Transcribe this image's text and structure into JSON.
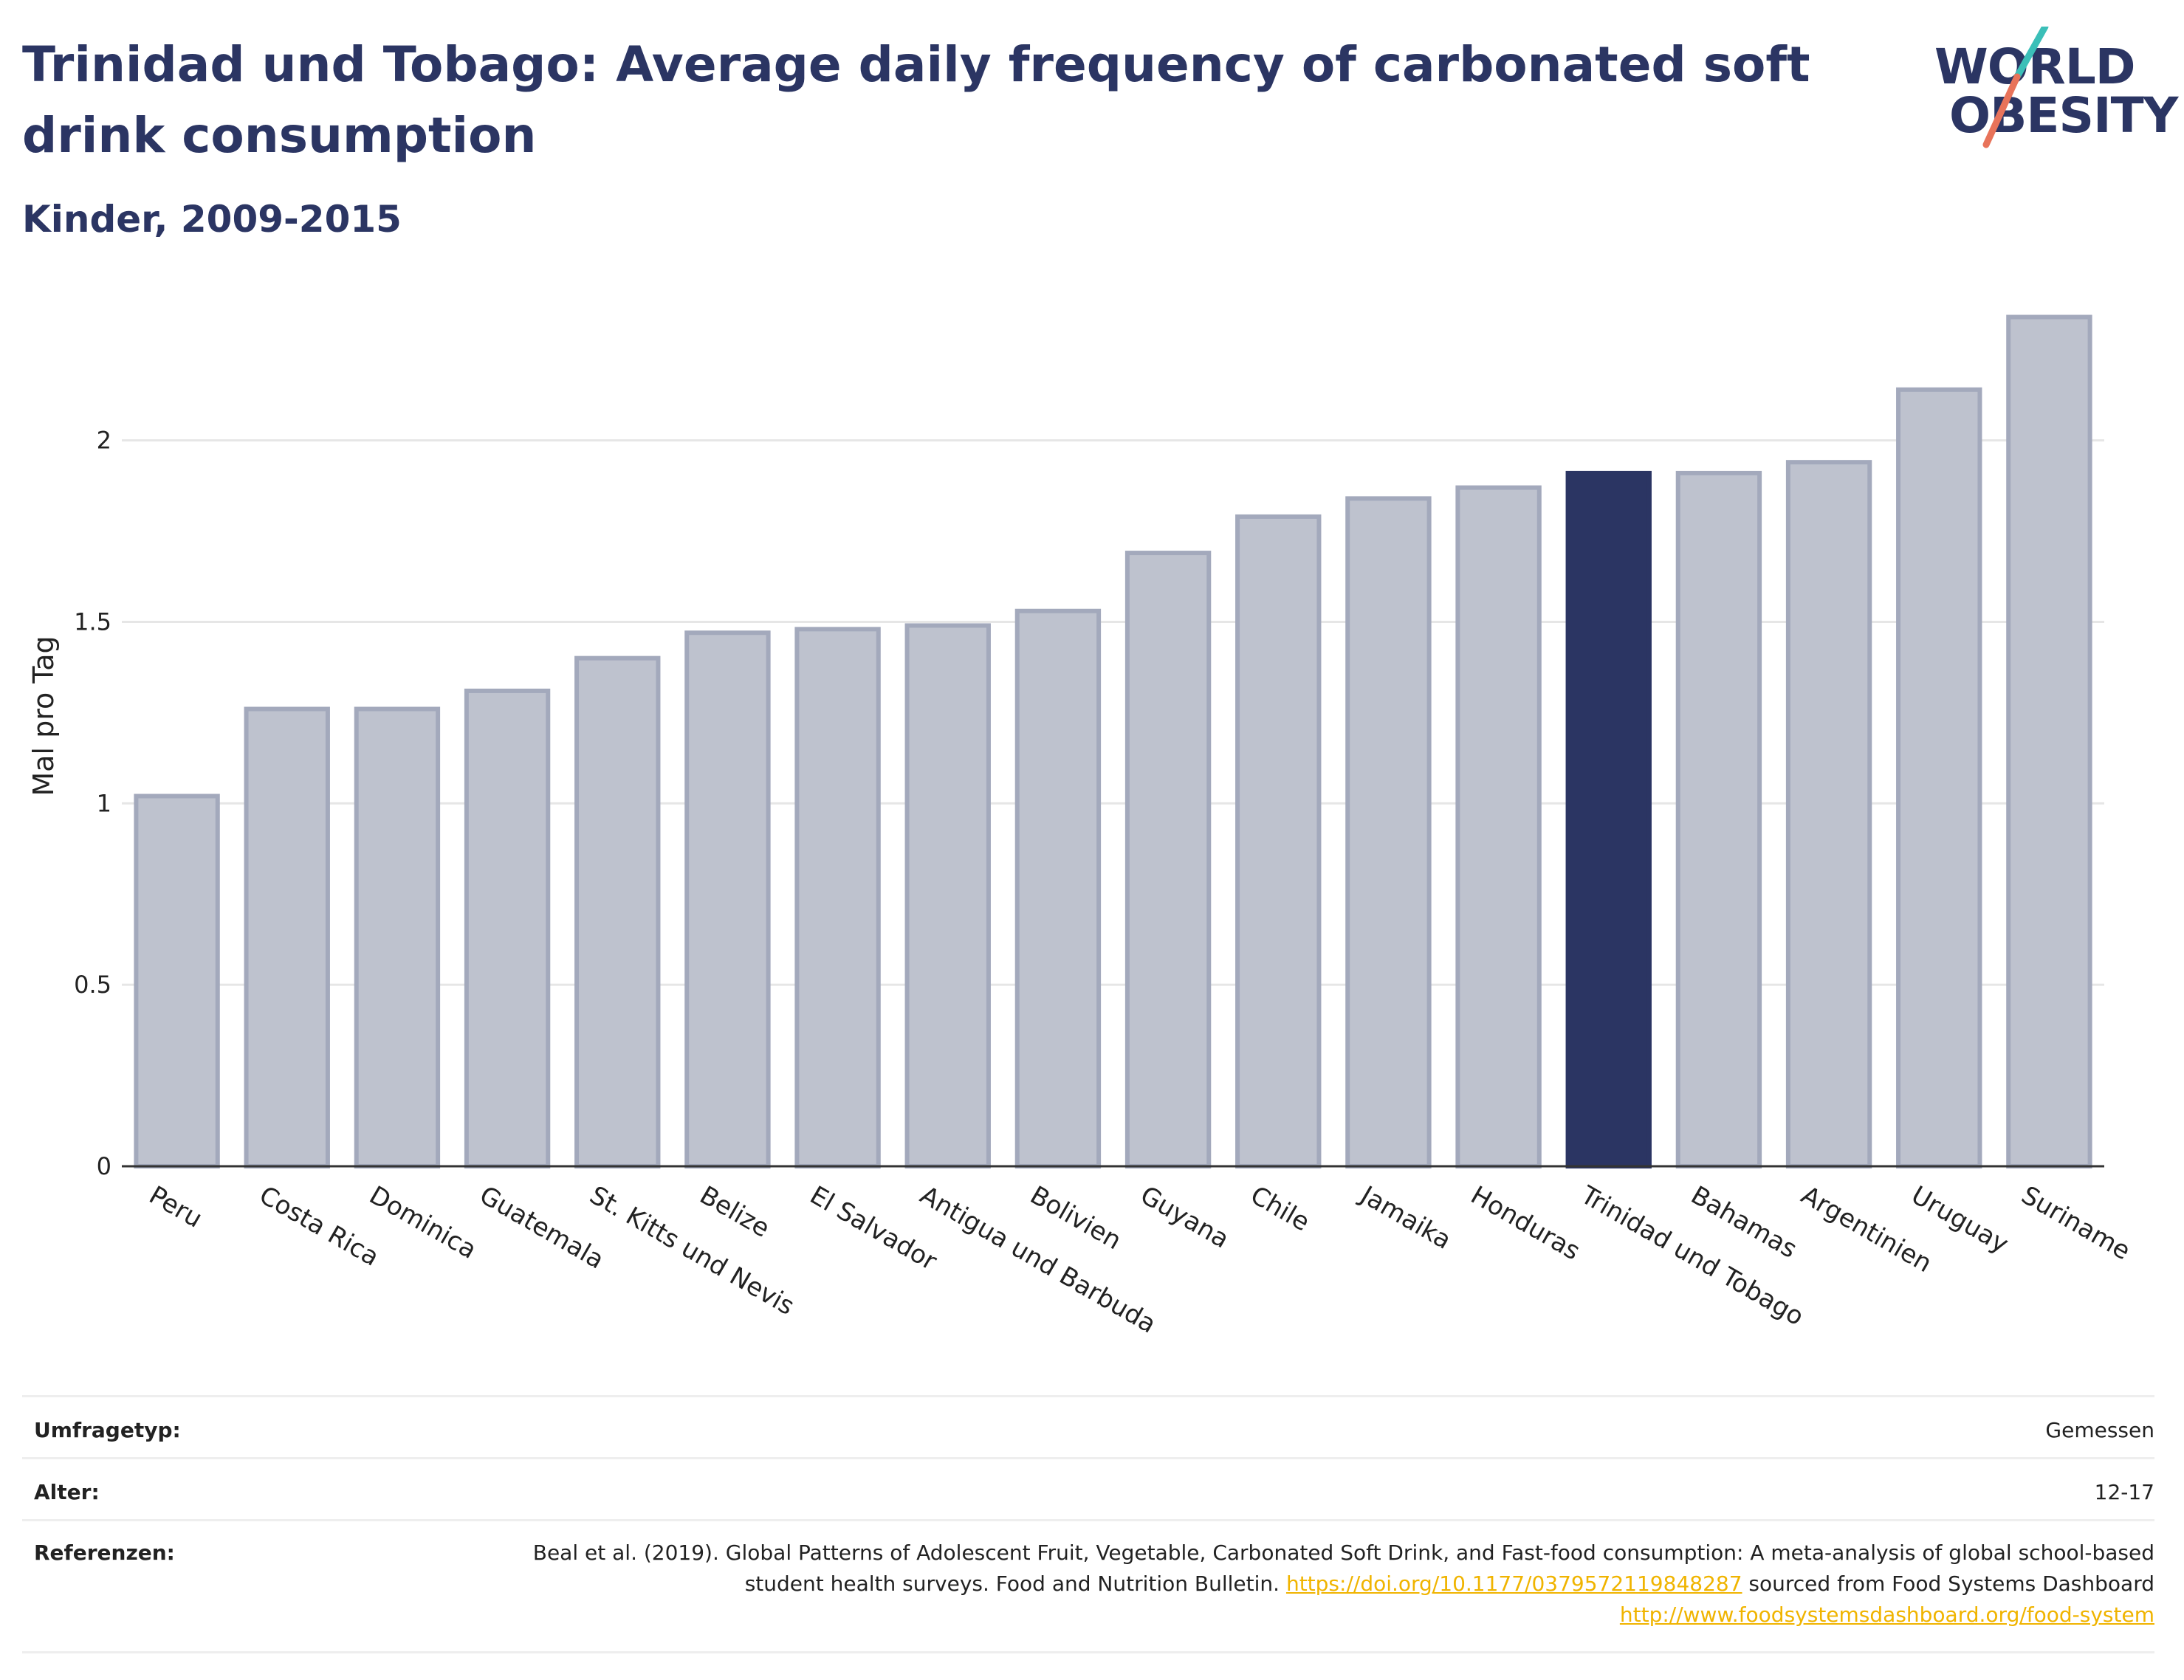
{
  "header": {
    "title": "Trinidad und Tobago: Average daily frequency of carbonated soft drink consumption",
    "subtitle": "Kinder, 2009-2015"
  },
  "logo": {
    "line1": "WORLD",
    "line2": "OBESITY",
    "accent_teal": "#3bbfb8",
    "accent_coral": "#e8735a"
  },
  "chart_data": {
    "type": "bar",
    "ylabel": "Mal pro Tag",
    "ylim": [
      0,
      2.4
    ],
    "yticks": [
      0,
      0.5,
      1,
      1.5,
      2
    ],
    "ytick_labels": [
      "0",
      "0.5",
      "1",
      "1.5",
      "2"
    ],
    "grid": true,
    "categories": [
      "Peru",
      "Costa Rica",
      "Dominica",
      "Guatemala",
      "St. Kitts und Nevis",
      "Belize",
      "El Salvador",
      "Antigua und Barbuda",
      "Bolivien",
      "Guyana",
      "Chile",
      "Jamaika",
      "Honduras",
      "Trinidad und Tobago",
      "Bahamas",
      "Argentinien",
      "Uruguay",
      "Suriname"
    ],
    "values": [
      1.02,
      1.26,
      1.26,
      1.31,
      1.4,
      1.47,
      1.48,
      1.49,
      1.53,
      1.69,
      1.79,
      1.84,
      1.87,
      1.91,
      1.91,
      1.94,
      2.14,
      2.34
    ],
    "highlight": "Trinidad und Tobago",
    "colors": {
      "bar": "#bec2ce",
      "bar_border": "#a3a9bc",
      "highlight": "#2b3563",
      "grid": "#e6e6e6",
      "axis": "#333333"
    }
  },
  "meta": {
    "survey_label": "Umfragetyp:",
    "survey_value": "Gemessen",
    "age_label": "Alter:",
    "age_value": "12-17",
    "ref_label": "Referenzen:",
    "ref_text_1": "Beal et al. (2019). Global Patterns of Adolescent Fruit, Vegetable, Carbonated Soft Drink, and Fast-food consumption: A meta-analysis of global school-based student health surveys. Food and Nutrition Bulletin.",
    "ref_link_1": "https://doi.org/10.1177/0379572119848287",
    "ref_text_2": "sourced from Food Systems Dashboard",
    "ref_link_2": "http://www.foodsystemsdashboard.org/food-system",
    "link_color": "#f0b400"
  }
}
